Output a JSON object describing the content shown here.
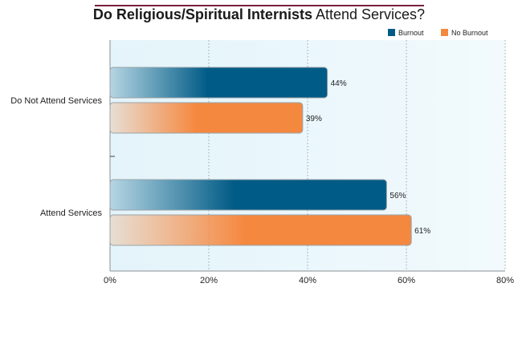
{
  "title": {
    "bold_part": "Do Religious/Spiritual Internists",
    "regular_part": "Attend Services?"
  },
  "colors": {
    "title_rule": "#7a1f3d",
    "burnout": "#005b86",
    "no_burnout": "#f5883f",
    "plot_bg": "#eaf7fc",
    "grid": "#9aa5ab"
  },
  "chart_data": {
    "type": "bar",
    "orientation": "horizontal",
    "categories": [
      "Do Not Attend Services",
      "Attend Services"
    ],
    "series": [
      {
        "name": "Burnout",
        "values": [
          44,
          56
        ],
        "value_labels": [
          "44%",
          "56%"
        ]
      },
      {
        "name": "No Burnout",
        "values": [
          39,
          61
        ],
        "value_labels": [
          "39%",
          "61%"
        ]
      }
    ],
    "xlim": [
      0,
      80
    ],
    "x_ticks": [
      0,
      20,
      40,
      60,
      80
    ],
    "x_tick_labels": [
      "0%",
      "20%",
      "40%",
      "60%",
      "80%"
    ],
    "grid": "vertical dotted",
    "legend_position": "top-right"
  }
}
